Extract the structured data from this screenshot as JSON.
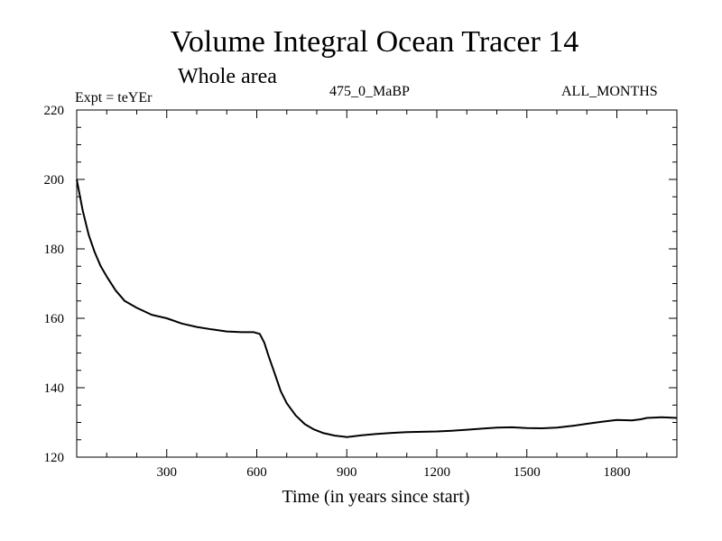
{
  "chart_data": {
    "type": "line",
    "title": "Volume Integral Ocean Tracer 14",
    "subtitle": "Whole area",
    "expt_label": "Expt = teYEr",
    "experiment_name": "475_0_MaBP",
    "period": "ALL_MONTHS",
    "xlabel": "Time (in years since start)",
    "ylabel": "",
    "xlim": [
      0,
      2000
    ],
    "ylim": [
      120,
      220
    ],
    "xticks": [
      300,
      600,
      900,
      1200,
      1500,
      1800
    ],
    "yticks": [
      120,
      140,
      160,
      180,
      200,
      220
    ],
    "grid": false,
    "series": [
      {
        "name": "tracer14",
        "x": [
          0,
          20,
          40,
          60,
          80,
          100,
          130,
          160,
          200,
          250,
          300,
          350,
          400,
          450,
          500,
          550,
          590,
          610,
          625,
          640,
          660,
          680,
          700,
          730,
          760,
          790,
          820,
          860,
          900,
          950,
          1000,
          1050,
          1100,
          1150,
          1200,
          1250,
          1300,
          1350,
          1400,
          1450,
          1500,
          1550,
          1600,
          1650,
          1700,
          1750,
          1800,
          1850,
          1880,
          1900,
          1950,
          2000
        ],
        "y": [
          200,
          191,
          184,
          179,
          175,
          172,
          168,
          165,
          163,
          161,
          160,
          158.5,
          157.5,
          156.8,
          156.2,
          156.0,
          156.0,
          155.5,
          153,
          149,
          144,
          139,
          135.5,
          132,
          129.5,
          128,
          127,
          126.2,
          125.8,
          126.3,
          126.7,
          127.0,
          127.2,
          127.3,
          127.4,
          127.6,
          127.9,
          128.2,
          128.5,
          128.6,
          128.4,
          128.3,
          128.5,
          129.0,
          129.6,
          130.2,
          130.7,
          130.6,
          130.9,
          131.3,
          131.5,
          131.3
        ]
      }
    ]
  }
}
